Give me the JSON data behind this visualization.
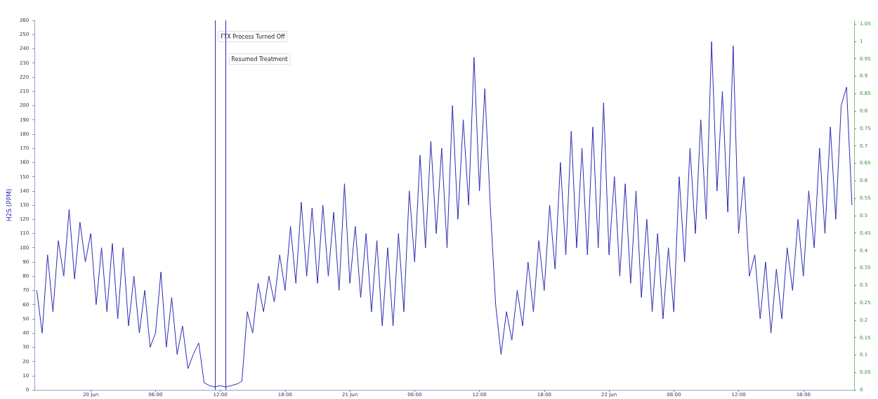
{
  "chart_data": {
    "type": "line",
    "ylabel": "H2S (PPM)",
    "xlim": [
      "--06-19T18:48",
      "--06-22T22:42"
    ],
    "xticks": [
      {
        "value": "--06-20T00:00",
        "label": "20 Jun"
      },
      {
        "value": "--06-20T06:00",
        "label": "06:00"
      },
      {
        "value": "--06-20T12:00",
        "label": "12:00"
      },
      {
        "value": "--06-20T18:00",
        "label": "18:00"
      },
      {
        "value": "--06-21T00:00",
        "label": "21 Jun"
      },
      {
        "value": "--06-21T06:00",
        "label": "06:00"
      },
      {
        "value": "--06-21T12:00",
        "label": "12:00"
      },
      {
        "value": "--06-21T18:00",
        "label": "18:00"
      },
      {
        "value": "--06-22T00:00",
        "label": "22 Jun"
      },
      {
        "value": "--06-22T06:00",
        "label": "06:00"
      },
      {
        "value": "--06-22T12:00",
        "label": "12:00"
      },
      {
        "value": "--06-22T18:00",
        "label": "18:00"
      }
    ],
    "ylim": [
      0,
      260
    ],
    "yticks": [
      0,
      10,
      20,
      30,
      40,
      50,
      60,
      70,
      80,
      90,
      100,
      110,
      120,
      130,
      140,
      150,
      160,
      170,
      180,
      190,
      200,
      210,
      220,
      230,
      240,
      250,
      260
    ],
    "y2lim": [
      0,
      1.06
    ],
    "y2ticks": [
      0,
      0.05,
      0.1,
      0.15,
      0.2,
      0.25,
      0.3,
      0.35,
      0.4,
      0.45,
      0.5,
      0.55,
      0.6,
      0.65,
      0.7,
      0.75,
      0.8,
      0.85,
      0.9,
      0.95,
      1,
      1.05
    ],
    "grid": false,
    "marker": "none",
    "line_style": "solid",
    "ref_lines": [
      {
        "axis": "x",
        "value": "--06-20T11:30",
        "label": "FTX Process Turned Off"
      },
      {
        "axis": "x",
        "value": "--06-20T12:30",
        "label": "Resumed Treatment"
      }
    ],
    "x": [
      "--06-19T19:00",
      "--06-19T19:30",
      "--06-19T20:00",
      "--06-19T20:30",
      "--06-19T21:00",
      "--06-19T21:30",
      "--06-19T22:00",
      "--06-19T22:30",
      "--06-19T23:00",
      "--06-19T23:30",
      "--06-20T00:00",
      "--06-20T00:30",
      "--06-20T01:00",
      "--06-20T01:30",
      "--06-20T02:00",
      "--06-20T02:30",
      "--06-20T03:00",
      "--06-20T03:30",
      "--06-20T04:00",
      "--06-20T04:30",
      "--06-20T05:00",
      "--06-20T05:30",
      "--06-20T06:00",
      "--06-20T06:30",
      "--06-20T07:00",
      "--06-20T07:30",
      "--06-20T08:00",
      "--06-20T08:30",
      "--06-20T09:00",
      "--06-20T09:30",
      "--06-20T10:00",
      "--06-20T10:30",
      "--06-20T11:00",
      "--06-20T11:30",
      "--06-20T12:00",
      "--06-20T12:30",
      "--06-20T13:00",
      "--06-20T13:30",
      "--06-20T14:00",
      "--06-20T14:30",
      "--06-20T15:00",
      "--06-20T15:30",
      "--06-20T16:00",
      "--06-20T16:30",
      "--06-20T17:00",
      "--06-20T17:30",
      "--06-20T18:00",
      "--06-20T18:30",
      "--06-20T19:00",
      "--06-20T19:30",
      "--06-20T20:00",
      "--06-20T20:30",
      "--06-20T21:00",
      "--06-20T21:30",
      "--06-20T22:00",
      "--06-20T22:30",
      "--06-20T23:00",
      "--06-20T23:30",
      "--06-21T00:00",
      "--06-21T00:30",
      "--06-21T01:00",
      "--06-21T01:30",
      "--06-21T02:00",
      "--06-21T02:30",
      "--06-21T03:00",
      "--06-21T03:30",
      "--06-21T04:00",
      "--06-21T04:30",
      "--06-21T05:00",
      "--06-21T05:30",
      "--06-21T06:00",
      "--06-21T06:30",
      "--06-21T07:00",
      "--06-21T07:30",
      "--06-21T08:00",
      "--06-21T08:30",
      "--06-21T09:00",
      "--06-21T09:30",
      "--06-21T10:00",
      "--06-21T10:30",
      "--06-21T11:00",
      "--06-21T11:30",
      "--06-21T12:00",
      "--06-21T12:30",
      "--06-21T13:00",
      "--06-21T13:30",
      "--06-21T14:00",
      "--06-21T14:30",
      "--06-21T15:00",
      "--06-21T15:30",
      "--06-21T16:00",
      "--06-21T16:30",
      "--06-21T17:00",
      "--06-21T17:30",
      "--06-21T18:00",
      "--06-21T18:30",
      "--06-21T19:00",
      "--06-21T19:30",
      "--06-21T20:00",
      "--06-21T20:30",
      "--06-21T21:00",
      "--06-21T21:30",
      "--06-21T22:00",
      "--06-21T22:30",
      "--06-21T23:00",
      "--06-21T23:30",
      "--06-22T00:00",
      "--06-22T00:30",
      "--06-22T01:00",
      "--06-22T01:30",
      "--06-22T02:00",
      "--06-22T02:30",
      "--06-22T03:00",
      "--06-22T03:30",
      "--06-22T04:00",
      "--06-22T04:30",
      "--06-22T05:00",
      "--06-22T05:30",
      "--06-22T06:00",
      "--06-22T06:30",
      "--06-22T07:00",
      "--06-22T07:30",
      "--06-22T08:00",
      "--06-22T08:30",
      "--06-22T09:00",
      "--06-22T09:30",
      "--06-22T10:00",
      "--06-22T10:30",
      "--06-22T11:00",
      "--06-22T11:30",
      "--06-22T12:00",
      "--06-22T12:30",
      "--06-22T13:00",
      "--06-22T13:30",
      "--06-22T14:00",
      "--06-22T14:30",
      "--06-22T15:00",
      "--06-22T15:30",
      "--06-22T16:00",
      "--06-22T16:30",
      "--06-22T17:00",
      "--06-22T17:30",
      "--06-22T18:00",
      "--06-22T18:30",
      "--06-22T19:00",
      "--06-22T19:30",
      "--06-22T20:00",
      "--06-22T20:30",
      "--06-22T21:00",
      "--06-22T21:30",
      "--06-22T22:00",
      "--06-22T22:30"
    ],
    "series": [
      {
        "color": "#2b2bb5",
        "values": [
          70,
          40,
          95,
          55,
          105,
          80,
          127,
          78,
          118,
          90,
          110,
          60,
          100,
          55,
          103,
          50,
          100,
          45,
          80,
          40,
          70,
          30,
          40,
          83,
          30,
          65,
          25,
          45,
          15,
          25,
          33,
          5,
          3,
          2,
          3,
          2,
          3,
          4,
          6,
          55,
          40,
          75,
          55,
          80,
          62,
          95,
          70,
          115,
          75,
          132,
          80,
          128,
          75,
          130,
          80,
          125,
          70,
          145,
          75,
          115,
          65,
          110,
          55,
          105,
          45,
          100,
          45,
          110,
          55,
          140,
          90,
          165,
          100,
          175,
          110,
          170,
          100,
          200,
          120,
          190,
          130,
          234,
          140,
          212,
          130,
          60,
          25,
          55,
          35,
          70,
          45,
          90,
          55,
          105,
          70,
          130,
          85,
          160,
          95,
          182,
          100,
          170,
          95,
          185,
          100,
          202,
          95,
          150,
          80,
          145,
          75,
          140,
          65,
          120,
          55,
          110,
          50,
          100,
          55,
          150,
          90,
          170,
          110,
          190,
          120,
          245,
          140,
          210,
          125,
          242,
          110,
          150,
          80,
          95,
          50,
          90,
          40,
          85,
          50,
          100,
          70,
          120,
          80,
          140,
          100,
          170,
          110,
          185,
          120,
          200,
          213,
          130
        ]
      }
    ]
  }
}
